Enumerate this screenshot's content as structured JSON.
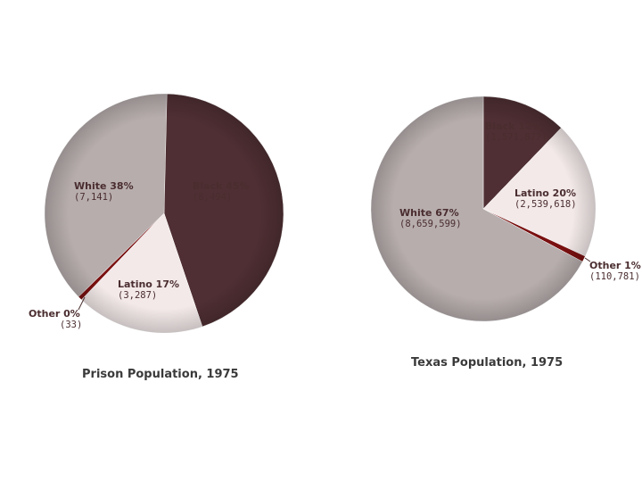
{
  "colors": {
    "Black": "#4f2f33",
    "Latino": "#f3e9e9",
    "White": "#b7adad",
    "Other": "#7a1010",
    "label_text": "#4a2d2f",
    "title_text": "#3a3a3a"
  },
  "chart_data": [
    {
      "type": "pie",
      "title": "Prison Population, 1975",
      "slices": [
        {
          "name": "Black",
          "pct_label": "Black 45%",
          "count_label": "(8,494)",
          "value": 8494
        },
        {
          "name": "Latino",
          "pct_label": "Latino 17%",
          "count_label": "(3,287)",
          "value": 3287
        },
        {
          "name": "Other",
          "pct_label": "Other 0%",
          "count_label": "(33)",
          "value": 33
        },
        {
          "name": "White",
          "pct_label": "White 38%",
          "count_label": "(7,141)",
          "value": 7141
        }
      ]
    },
    {
      "type": "pie",
      "title": "Texas Population, 1975",
      "slices": [
        {
          "name": "Black",
          "pct_label": "Black 12%",
          "count_label": "(1,571,877)",
          "value": 1571877
        },
        {
          "name": "Latino",
          "pct_label": "Latino 20%",
          "count_label": "(2,539,618)",
          "value": 2539618
        },
        {
          "name": "Other",
          "pct_label": "Other 1%",
          "count_label": "(110,781)",
          "value": 110781
        },
        {
          "name": "White",
          "pct_label": "White 67%",
          "count_label": "(8,659,599)",
          "value": 8659599
        }
      ]
    }
  ]
}
